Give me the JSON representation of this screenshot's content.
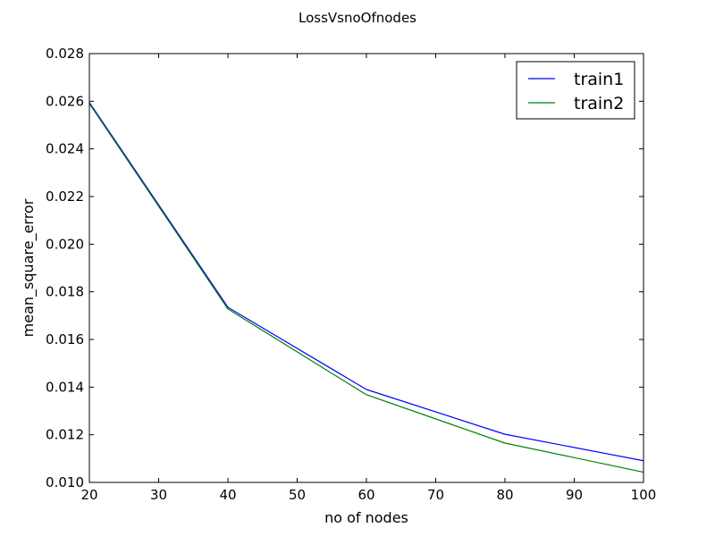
{
  "chart_data": {
    "type": "line",
    "title": "LossVsnoOfnodes",
    "xlabel": "no of nodes",
    "ylabel": "mean_square_error",
    "x": [
      20,
      40,
      60,
      80,
      100
    ],
    "xlim": [
      20,
      100
    ],
    "ylim": [
      0.01,
      0.028
    ],
    "xticks": [
      20,
      30,
      40,
      50,
      60,
      70,
      80,
      90,
      100
    ],
    "yticks": [
      0.01,
      0.012,
      0.014,
      0.016,
      0.018,
      0.02,
      0.022,
      0.024,
      0.026,
      0.028
    ],
    "xtick_labels": [
      "20",
      "30",
      "40",
      "50",
      "60",
      "70",
      "80",
      "90",
      "100"
    ],
    "ytick_labels": [
      "0.010",
      "0.012",
      "0.014",
      "0.016",
      "0.018",
      "0.020",
      "0.022",
      "0.024",
      "0.026",
      "0.028"
    ],
    "grid": false,
    "legend_position": "top-right",
    "series": [
      {
        "name": "train1",
        "color": "#0000ff",
        "values": [
          0.02595,
          0.01735,
          0.0139,
          0.01202,
          0.01091
        ]
      },
      {
        "name": "train2",
        "color": "#008000",
        "values": [
          0.0259,
          0.01728,
          0.01368,
          0.01165,
          0.01043
        ]
      }
    ]
  }
}
